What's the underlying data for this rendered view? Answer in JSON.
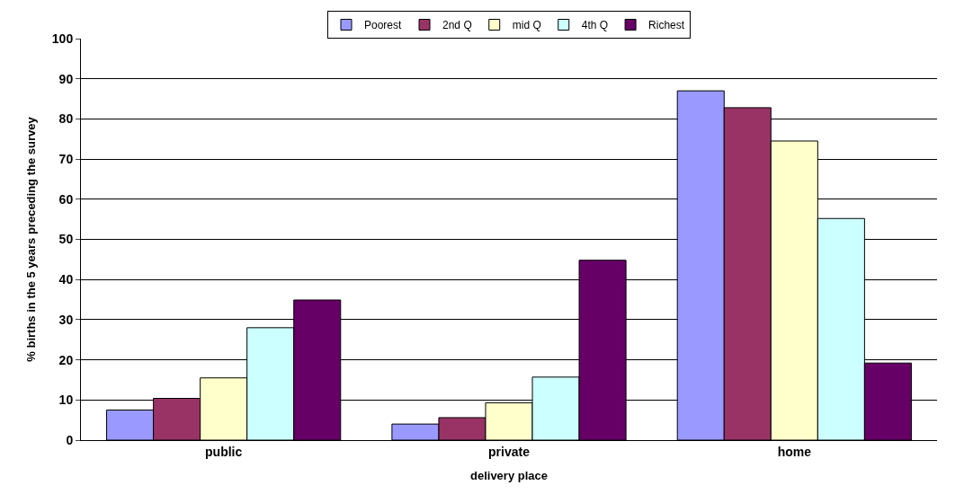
{
  "chart_data": {
    "type": "bar",
    "xlabel": "delivery place",
    "ylabel": "% births in the 5 years preceding the survey",
    "categories": [
      "public",
      "private",
      "home"
    ],
    "series": [
      {
        "name": "Poorest",
        "color": "#9999ff",
        "values": [
          7.5,
          4.0,
          87.0
        ]
      },
      {
        "name": "2nd Q",
        "color": "#993366",
        "values": [
          10.4,
          5.6,
          82.8
        ]
      },
      {
        "name": "mid Q",
        "color": "#ffffcc",
        "values": [
          15.5,
          9.3,
          74.5
        ]
      },
      {
        "name": "4th Q",
        "color": "#ccffff",
        "values": [
          28.0,
          15.7,
          55.2
        ]
      },
      {
        "name": "Richest",
        "color": "#660066",
        "values": [
          34.9,
          44.8,
          19.2
        ]
      }
    ],
    "ylim": [
      0,
      100
    ],
    "yticks": [
      0,
      10,
      20,
      30,
      40,
      50,
      60,
      70,
      80,
      90,
      100
    ],
    "grid": "y",
    "legend": "top"
  }
}
